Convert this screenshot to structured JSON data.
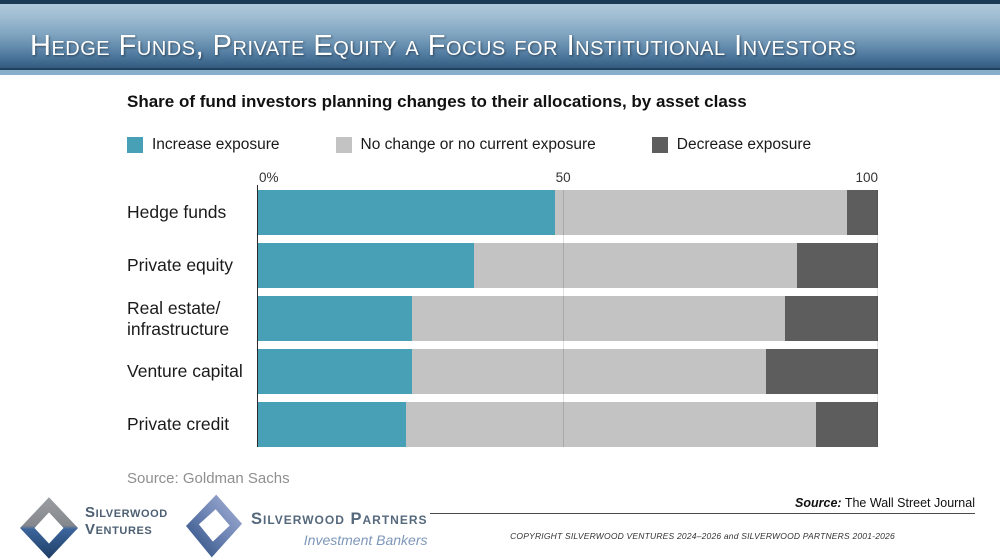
{
  "header": {
    "title": "Hedge Funds, Private Equity a Focus for Institutional Investors"
  },
  "chart": {
    "title": "Share of fund investors planning changes to their allocations, by asset class",
    "legend": [
      {
        "label": "Increase exposure",
        "color": "#47a0b6"
      },
      {
        "label": "No change or no current exposure",
        "color": "#c3c3c3"
      },
      {
        "label": "Decrease exposure",
        "color": "#5d5d5d"
      }
    ],
    "source": "Source: Goldman Sachs"
  },
  "chart_data": {
    "type": "bar",
    "orientation": "horizontal",
    "stacked": true,
    "title": "Share of fund investors planning changes to their allocations, by asset class",
    "categories": [
      "Hedge funds",
      "Private equity",
      "Real estate/ infrastructure",
      "Venture capital",
      "Private credit"
    ],
    "series": [
      {
        "name": "Increase exposure",
        "color": "#47a0b6",
        "values": [
          48,
          35,
          25,
          25,
          24
        ]
      },
      {
        "name": "No change or no current exposure",
        "color": "#c3c3c3",
        "values": [
          47,
          52,
          60,
          57,
          66
        ]
      },
      {
        "name": "Decrease exposure",
        "color": "#5d5d5d",
        "values": [
          5,
          13,
          15,
          18,
          10
        ]
      }
    ],
    "xlim": [
      0,
      100
    ],
    "xticks": [
      "0%",
      "50",
      "100"
    ],
    "legend_position": "top",
    "grid": "vertical-at-50-and-100"
  },
  "footer": {
    "ventures_logo": {
      "line1": "Silverwood",
      "line2": "Ventures"
    },
    "partners_logo": {
      "name": "Silverwood Partners",
      "subtitle": "Investment Bankers"
    },
    "wsj_source": {
      "label": "Source:",
      "text": "The Wall Street Journal"
    },
    "copyright": "COPYRIGHT SILVERWOOD VENTURES 2024–2026 and SILVERWOOD PARTNERS 2001-2026"
  }
}
